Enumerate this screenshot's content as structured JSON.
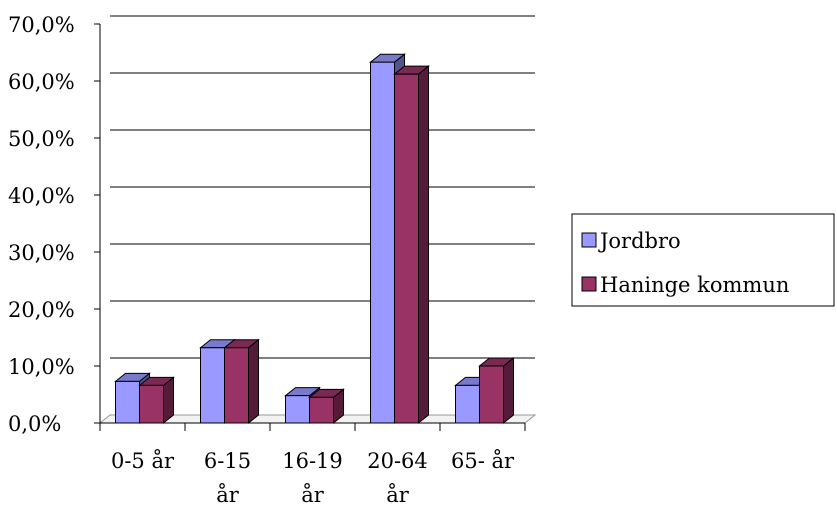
{
  "chart_data": {
    "type": "bar",
    "style": "3d-clustered-column",
    "categories": [
      [
        "0-5 år"
      ],
      [
        "6-15",
        "år"
      ],
      [
        "16-19",
        "år"
      ],
      [
        "20-64",
        "år"
      ],
      [
        "65- år"
      ]
    ],
    "series": [
      {
        "name": "Jordbro",
        "values": [
          7.3,
          13.2,
          4.8,
          63.3,
          6.6
        ],
        "color": "#9999ff"
      },
      {
        "name": "Haninge kommun",
        "values": [
          6.6,
          13.2,
          4.5,
          61.2,
          10.0
        ],
        "color": "#993366"
      }
    ],
    "y_ticks": [
      "0,0%",
      "10,0%",
      "20,0%",
      "30,0%",
      "40,0%",
      "50,0%",
      "60,0%",
      "70,0%"
    ],
    "ylim": [
      0,
      70
    ],
    "grid": true,
    "legend_position": "right"
  }
}
